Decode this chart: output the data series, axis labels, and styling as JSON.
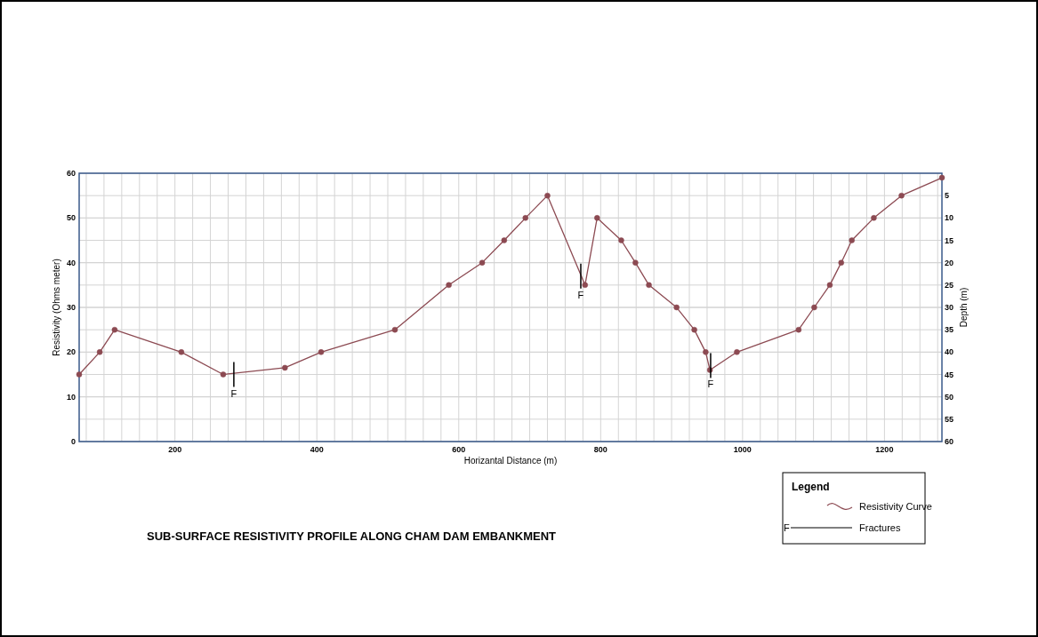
{
  "chart_data": {
    "type": "line",
    "title": "SUB-SURFACE RESISTIVITY PROFILE ALONG CHAM DAM EMBANKMENT",
    "xlabel": "Horizantal Distance (m)",
    "ylabel": "Resistivity (Ohms meter)",
    "y2label": "Depth (m)",
    "legend_title": "Legend",
    "legend": "bottom right",
    "grid": true,
    "marker": "circle",
    "line_style": "solid",
    "xlim": [
      65,
      1281
    ],
    "ylim": [
      0,
      60
    ],
    "yticks": [
      0,
      10,
      20,
      30,
      40,
      50,
      60
    ],
    "y2lim": [
      60,
      0
    ],
    "y2ticks": [
      5,
      10,
      15,
      20,
      25,
      30,
      35,
      40,
      45,
      50,
      55,
      60
    ],
    "xticks": [
      {
        "value": 75,
        "label": null
      },
      {
        "value": 100,
        "label": null
      },
      {
        "value": 125,
        "label": null
      },
      {
        "value": 150,
        "label": null
      },
      {
        "value": 175,
        "label": null
      },
      200,
      {
        "value": 225,
        "label": null
      },
      {
        "value": 250,
        "label": null
      },
      {
        "value": 275,
        "label": null
      },
      {
        "value": 300,
        "label": null
      },
      {
        "value": 325,
        "label": null
      },
      {
        "value": 350,
        "label": null
      },
      {
        "value": 375,
        "label": null
      },
      400,
      {
        "value": 425,
        "label": null
      },
      {
        "value": 450,
        "label": null
      },
      {
        "value": 475,
        "label": null
      },
      {
        "value": 500,
        "label": null
      },
      {
        "value": 525,
        "label": null
      },
      {
        "value": 550,
        "label": null
      },
      {
        "value": 575,
        "label": null
      },
      600,
      {
        "value": 625,
        "label": null
      },
      {
        "value": 650,
        "label": null
      },
      {
        "value": 675,
        "label": null
      },
      {
        "value": 700,
        "label": null
      },
      {
        "value": 725,
        "label": null
      },
      {
        "value": 750,
        "label": null
      },
      {
        "value": 775,
        "label": null
      },
      800,
      {
        "value": 825,
        "label": null
      },
      {
        "value": 850,
        "label": null
      },
      {
        "value": 875,
        "label": null
      },
      {
        "value": 900,
        "label": null
      },
      {
        "value": 925,
        "label": null
      },
      {
        "value": 950,
        "label": null
      },
      {
        "value": 975,
        "label": null
      },
      1000,
      {
        "value": 1025,
        "label": null
      },
      {
        "value": 1050,
        "label": null
      },
      {
        "value": 1075,
        "label": null
      },
      {
        "value": 1100,
        "label": null
      },
      {
        "value": 1125,
        "label": null
      },
      {
        "value": 1150,
        "label": null
      },
      {
        "value": 1175,
        "label": null
      },
      1200,
      {
        "value": 1225,
        "label": null
      },
      {
        "value": 1250,
        "label": null
      },
      {
        "value": 1275,
        "label": null
      }
    ],
    "series": [
      {
        "name": "Resistivity Curve",
        "color": "#8c4a52",
        "x": [
          65,
          94,
          115,
          209,
          268,
          355,
          406,
          510,
          586,
          633,
          664,
          694,
          725,
          778,
          795,
          829,
          849,
          868,
          907,
          932,
          948,
          954,
          992,
          1079,
          1101,
          1123,
          1139,
          1154,
          1185,
          1224,
          1281
        ],
        "values": [
          15,
          20,
          25,
          20,
          15,
          16.5,
          20,
          25,
          35,
          40,
          45,
          50,
          55,
          35,
          50,
          45,
          40,
          35,
          30,
          25,
          20,
          16,
          20,
          25,
          30,
          35,
          40,
          45,
          50,
          55,
          59
        ]
      }
    ],
    "annotations": [
      {
        "text": "F",
        "x": 283,
        "y": 15
      },
      {
        "text": "F",
        "x": 772,
        "y": 37
      },
      {
        "text": "F",
        "x": 955,
        "y": 17
      },
      "Fractures"
    ]
  }
}
